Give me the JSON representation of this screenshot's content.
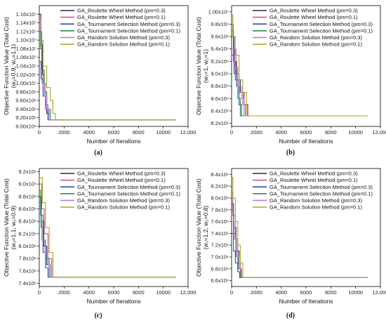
{
  "chart_data": [
    {
      "type": "line",
      "panel_label": "(a)",
      "xlabel": "Number of Iterations",
      "ylabel_line1": "Objective Function Value (Total Cost)",
      "ylabel_line2": "(w₁=0.9, w₂=1.1)",
      "xlim": [
        0,
        12000
      ],
      "ylim": [
        9000000,
        11800000
      ],
      "x_ticks": [
        0,
        2000,
        4000,
        6000,
        8000,
        10000,
        12000
      ],
      "x_tick_labels": [
        "0",
        "2000",
        "4000",
        "6000",
        "8000",
        "10000",
        "12,000"
      ],
      "y_ticks": [
        9000000,
        9200000,
        9400000,
        9600000,
        9800000,
        10000000,
        10200000,
        10400000,
        10600000,
        10800000,
        11000000,
        11200000,
        11400000,
        11600000
      ],
      "y_tick_labels": [
        "9.00x10⁶",
        "9.20x10⁶",
        "9.40x10⁶",
        "9.60x10⁶",
        "9.80x10⁶",
        "1.00x10⁷",
        "1.02x10⁷",
        "1.04x10⁷",
        "1.06x10⁷",
        "1.08x10⁷",
        "1.10x10⁷",
        "1.12x10⁷",
        "1.14x10⁷",
        "1.16x10⁷"
      ],
      "legend_position": "top-right",
      "series": [
        {
          "name": "GA_Roulette Wheel Method (pm=0.3)",
          "color": "#1f2a5c",
          "x": [
            0,
            120,
            250,
            400,
            600,
            800,
            11000
          ],
          "y": [
            11600000,
            10900000,
            10200000,
            9700000,
            9300000,
            9150000,
            9150000
          ]
        },
        {
          "name": "GA_Roulette Wheel Method (pm=0.1)",
          "color": "#c45a8c",
          "x": [
            0,
            100,
            200,
            300,
            500,
            700,
            11000
          ],
          "y": [
            11500000,
            11200000,
            10600000,
            10000000,
            9500000,
            9150000,
            9150000
          ]
        },
        {
          "name": "GA_Tournament Selection Method (pm=0.3)",
          "color": "#2b4fb8",
          "x": [
            0,
            150,
            300,
            500,
            700,
            11000
          ],
          "y": [
            10500000,
            10100000,
            9700000,
            9400000,
            9150000,
            9150000
          ]
        },
        {
          "name": "GA_Tournament Selection Method (pm=0.1)",
          "color": "#2e8b57",
          "x": [
            0,
            100,
            200,
            400,
            600,
            900,
            11000
          ],
          "y": [
            11200000,
            10800000,
            10300000,
            9800000,
            9400000,
            9150000,
            9150000
          ]
        },
        {
          "name": "GA_Random Solution Method (pm=0.3)",
          "color": "#c07ad8",
          "x": [
            0,
            200,
            400,
            600,
            800,
            11000
          ],
          "y": [
            10300000,
            10000000,
            9700000,
            9400000,
            9150000,
            9150000
          ]
        },
        {
          "name": "GA_Random Solution Method (pm=0.1)",
          "color": "#a8a81c",
          "x": [
            0,
            300,
            600,
            900,
            1100,
            1300,
            11000
          ],
          "y": [
            11000000,
            10400000,
            9900000,
            9600000,
            9300000,
            9150000,
            9150000
          ]
        }
      ]
    },
    {
      "type": "line",
      "panel_label": "(b)",
      "xlabel": "Number of Iterations",
      "ylabel_line1": "Objective Function Value (Total Cost)",
      "ylabel_line2": "(w₁=1, w₂=1)",
      "xlim": [
        0,
        12000
      ],
      "ylim": [
        8150000,
        10100000
      ],
      "x_ticks": [
        0,
        2000,
        4000,
        6000,
        8000,
        10000,
        12000
      ],
      "x_tick_labels": [
        "0",
        "2000",
        "4000",
        "6000",
        "8000",
        "10000",
        "12,000"
      ],
      "y_ticks": [
        8200000,
        8400000,
        8600000,
        8800000,
        9000000,
        9200000,
        9400000,
        9600000,
        9800000,
        10000000
      ],
      "y_tick_labels": [
        "8.2x10⁶",
        "8.4x10⁶",
        "8.6x10⁶",
        "8.8x10⁶",
        "9.0x10⁶",
        "9.2x10⁶",
        "9.4x10⁶",
        "9.6x10⁶",
        "9.8x10⁶",
        "1.00x10⁷"
      ],
      "legend_position": "top-right",
      "series": [
        {
          "name": "GA_Roulette Wheel Method (pm=0.3)",
          "color": "#1f2a5c",
          "x": [
            0,
            200,
            400,
            700,
            1000,
            1300,
            11000
          ],
          "y": [
            9600000,
            9200000,
            8900000,
            8700000,
            8500000,
            8320000,
            8320000
          ]
        },
        {
          "name": "GA_Roulette Wheel Method (pm=0.1)",
          "color": "#c45a8c",
          "x": [
            0,
            150,
            350,
            600,
            900,
            1100,
            11000
          ],
          "y": [
            9800000,
            9400000,
            9000000,
            8700000,
            8500000,
            8320000,
            8320000
          ]
        },
        {
          "name": "GA_Tournament Selection Method (pm=0.3)",
          "color": "#2b4fb8",
          "x": [
            0,
            200,
            400,
            600,
            800,
            11000
          ],
          "y": [
            9300000,
            9000000,
            8800000,
            8500000,
            8320000,
            8320000
          ]
        },
        {
          "name": "GA_Tournament Selection Method (pm=0.1)",
          "color": "#2e8b57",
          "x": [
            0,
            150,
            300,
            500,
            700,
            11000
          ],
          "y": [
            9700000,
            9200000,
            8900000,
            8600000,
            8320000,
            8320000
          ]
        },
        {
          "name": "GA_Random Solution Method (pm=0.3)",
          "color": "#c07ad8",
          "x": [
            0,
            250,
            500,
            800,
            1000,
            11000
          ],
          "y": [
            9400000,
            9100000,
            8800000,
            8600000,
            8320000,
            8320000
          ]
        },
        {
          "name": "GA_Random Solution Method (pm=0.1)",
          "color": "#a8a81c",
          "x": [
            0,
            100,
            300,
            600,
            900,
            1200,
            11000
          ],
          "y": [
            9950000,
            9600000,
            9300000,
            8900000,
            8700000,
            8320000,
            8320000
          ]
        }
      ]
    },
    {
      "type": "line",
      "panel_label": "(c)",
      "xlabel": "Number of Iterations",
      "ylabel_line1": "Objective Function Value (Total Cost)",
      "ylabel_line2": "(w₁=1.1, w₂=0.9)",
      "xlim": [
        0,
        12000
      ],
      "ylim": [
        7350000,
        9250000
      ],
      "x_ticks": [
        0,
        2000,
        4000,
        6000,
        8000,
        10000,
        12000
      ],
      "x_tick_labels": [
        "0",
        "2000",
        "4000",
        "6000",
        "8000",
        "10000",
        "12,000"
      ],
      "y_ticks": [
        7400000,
        7600000,
        7800000,
        8000000,
        8200000,
        8400000,
        8600000,
        8800000,
        9000000,
        9200000
      ],
      "y_tick_labels": [
        "7.4x10⁶",
        "7.6x10⁶",
        "7.8x10⁶",
        "8.0x10⁶",
        "8.2x10⁶",
        "8.4x10⁶",
        "8.6x10⁶",
        "8.8x10⁶",
        "9.0x10⁶",
        "9.2x10⁶"
      ],
      "legend_position": "top-right",
      "series": [
        {
          "name": "GA_Roulette Wheel Method (pm=0.3)",
          "color": "#1f2a5c",
          "x": [
            0,
            150,
            350,
            600,
            900,
            11000
          ],
          "y": [
            8800000,
            8400000,
            8000000,
            7700000,
            7500000,
            7500000
          ]
        },
        {
          "name": "GA_Roulette Wheel Method (pm=0.1)",
          "color": "#c45a8c",
          "x": [
            0,
            200,
            400,
            700,
            1000,
            11000
          ],
          "y": [
            9000000,
            8600000,
            8200000,
            7800000,
            7500000,
            7500000
          ]
        },
        {
          "name": "GA_Tournament Selection Method (pm=0.3)",
          "color": "#2b4fb8",
          "x": [
            0,
            150,
            300,
            500,
            700,
            11000
          ],
          "y": [
            8700000,
            8300000,
            7900000,
            7650000,
            7500000,
            7500000
          ]
        },
        {
          "name": "GA_Tournament Selection Method (pm=0.1)",
          "color": "#2e8b57",
          "x": [
            0,
            100,
            300,
            500,
            800,
            11000
          ],
          "y": [
            8900000,
            8500000,
            8100000,
            7800000,
            7500000,
            7500000
          ]
        },
        {
          "name": "GA_Random Solution Method (pm=0.3)",
          "color": "#c07ad8",
          "x": [
            0,
            200,
            450,
            700,
            900,
            11000
          ],
          "y": [
            8400000,
            8100000,
            7900000,
            7700000,
            7500000,
            7500000
          ]
        },
        {
          "name": "GA_Random Solution Method (pm=0.1)",
          "color": "#a8a81c",
          "x": [
            0,
            250,
            500,
            800,
            1100,
            11000
          ],
          "y": [
            9100000,
            8700000,
            8300000,
            7900000,
            7500000,
            7500000
          ]
        }
      ]
    },
    {
      "type": "line",
      "panel_label": "(d)",
      "xlabel": "Number of Iterations",
      "ylabel_line1": "Objective Function Value (Total Cost)",
      "ylabel_line2": "(w₁=1.2, w₂=0.8)",
      "xlim": [
        0,
        12000
      ],
      "ylim": [
        6500000,
        8500000
      ],
      "x_ticks": [
        0,
        2000,
        4000,
        6000,
        8000,
        10000,
        12000
      ],
      "x_tick_labels": [
        "0",
        "2000",
        "4000",
        "6000",
        "8000",
        "10000",
        "12,000"
      ],
      "y_ticks": [
        6600000,
        6800000,
        7000000,
        7200000,
        7400000,
        7600000,
        7800000,
        8000000,
        8200000,
        8400000
      ],
      "y_tick_labels": [
        "6.6x10⁶",
        "6.8x10⁶",
        "7.0x10⁶",
        "7.2x10⁶",
        "7.4x10⁶",
        "7.6x10⁶",
        "7.8x10⁶",
        "8.0x10⁶",
        "8.2x10⁶",
        "8.4x10⁶"
      ],
      "legend_position": "top-right",
      "series": [
        {
          "name": "GA_Roulette Wheel Method (pm=0.3)",
          "color": "#1f2a5c",
          "x": [
            0,
            150,
            350,
            600,
            800,
            11000
          ],
          "y": [
            7900000,
            7500000,
            7100000,
            6800000,
            6650000,
            6650000
          ]
        },
        {
          "name": "GA_Roulette Wheel Method (pm=0.1)",
          "color": "#c45a8c",
          "x": [
            0,
            100,
            300,
            500,
            700,
            11000
          ],
          "y": [
            8100000,
            7700000,
            7300000,
            6900000,
            6650000,
            6650000
          ]
        },
        {
          "name": "GA_Tournament Selection Method (pm=0.3)",
          "color": "#2b4fb8",
          "x": [
            0,
            150,
            300,
            500,
            650,
            11000
          ],
          "y": [
            7400000,
            7100000,
            6900000,
            6750000,
            6650000,
            6650000
          ]
        },
        {
          "name": "GA_Tournament Selection Method (pm=0.1)",
          "color": "#2e8b57",
          "x": [
            0,
            150,
            350,
            550,
            750,
            11000
          ],
          "y": [
            7800000,
            7400000,
            7000000,
            6800000,
            6650000,
            6650000
          ]
        },
        {
          "name": "GA_Random Solution Method (pm=0.3)",
          "color": "#c07ad8",
          "x": [
            0,
            200,
            400,
            600,
            800,
            11000
          ],
          "y": [
            7600000,
            7300000,
            7000000,
            6800000,
            6650000,
            6650000
          ]
        },
        {
          "name": "GA_Random Solution Method (pm=0.1)",
          "color": "#a8a81c",
          "x": [
            0,
            100,
            300,
            500,
            700,
            900,
            11000
          ],
          "y": [
            8350000,
            8000000,
            7600000,
            7200000,
            6900000,
            6650000,
            6650000
          ]
        }
      ]
    }
  ]
}
